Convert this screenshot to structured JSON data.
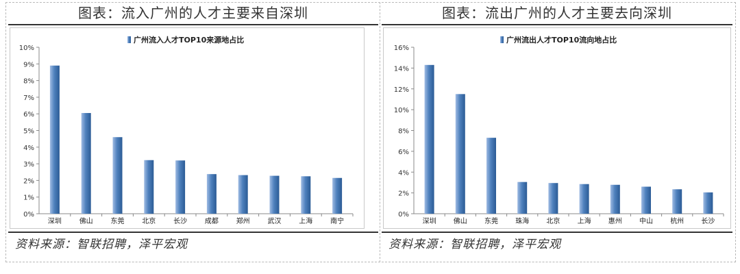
{
  "left": {
    "title": "图表：流入广州的人才主要来自深圳",
    "source": "资料来源：智联招聘，泽平宏观"
  },
  "right": {
    "title": "图表：流出广州的人才主要去向深圳",
    "source": "资料来源：智联招聘，泽平宏观"
  },
  "colors": {
    "bar_light": "#9fbbe3",
    "bar_mid": "#4f81bd",
    "bar_dark": "#2b5b95"
  },
  "chart_data": [
    {
      "type": "bar",
      "legend": "广州流入人才TOP10来源地占比",
      "categories": [
        "深圳",
        "佛山",
        "东莞",
        "北京",
        "长沙",
        "成都",
        "郑州",
        "武汉",
        "上海",
        "南宁"
      ],
      "values": [
        8.9,
        6.05,
        4.6,
        3.22,
        3.2,
        2.38,
        2.32,
        2.28,
        2.25,
        2.15
      ],
      "ylim": [
        0,
        10
      ],
      "ytick_step": 1,
      "ytick_suffix": "%",
      "legend_position": "top-center",
      "grid": false
    },
    {
      "type": "bar",
      "legend": "广州流出人才TOP10流向地占比",
      "categories": [
        "深圳",
        "佛山",
        "东莞",
        "珠海",
        "北京",
        "上海",
        "惠州",
        "中山",
        "杭州",
        "长沙"
      ],
      "values": [
        14.3,
        11.5,
        7.3,
        3.05,
        2.95,
        2.85,
        2.78,
        2.6,
        2.35,
        2.05
      ],
      "ylim": [
        0,
        16
      ],
      "ytick_step": 2,
      "ytick_suffix": "%",
      "legend_position": "top-center",
      "grid": false
    }
  ]
}
